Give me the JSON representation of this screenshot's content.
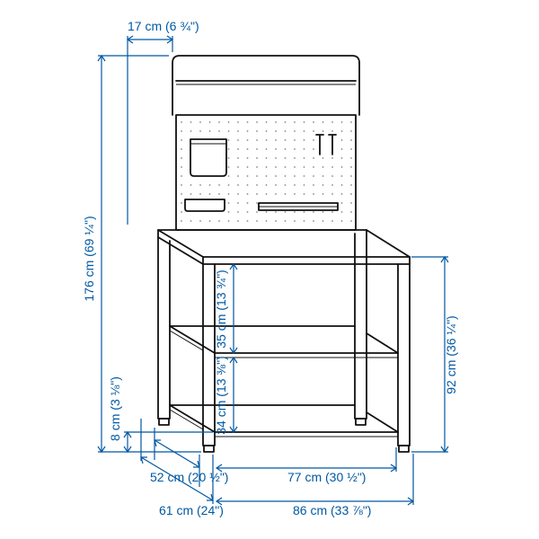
{
  "title": "Workbench dimension drawing",
  "colors": {
    "dimension": "#0058a3",
    "product": "#111111",
    "background": "#ffffff",
    "pegboard_dot": "#888888"
  },
  "dimensions": {
    "top_depth": {
      "label": "17 cm (6 ¾\")"
    },
    "total_height": {
      "label": "176 cm (69 ¼\")"
    },
    "leg_height": {
      "label": "8 cm (3 ⅛\")"
    },
    "lower_gap": {
      "label": "34 cm (13 ⅜\")"
    },
    "upper_gap": {
      "label": "35 cm (13 ¾\")"
    },
    "table_height": {
      "label": "92 cm (36 ¼\")"
    },
    "depth_inner": {
      "label": "52 cm (20 ½\")"
    },
    "depth_outer": {
      "label": "61 cm (24\")"
    },
    "width_inner": {
      "label": "77 cm (30 ½\")"
    },
    "width_outer": {
      "label": "86 cm (33 ⅞\")"
    }
  }
}
